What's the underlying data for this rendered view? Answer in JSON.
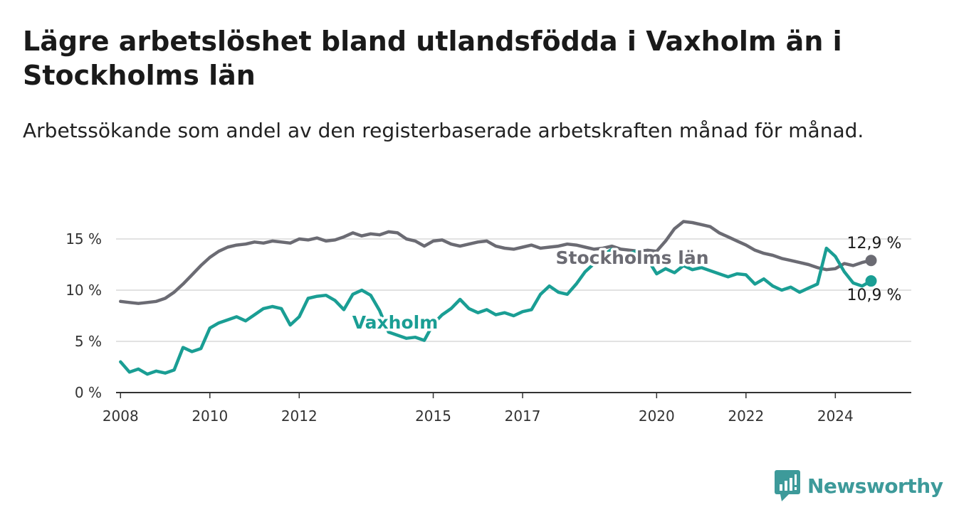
{
  "header": {
    "title": "Lägre arbetslöshet bland utlandsfödda i Vaxholm än i Stockholms län",
    "subtitle": "Arbetssökande som andel av den registerbaserade arbetskraften månad för månad."
  },
  "brand": {
    "name": "Newsworthy",
    "icon": "newsworthy-logo-icon",
    "color": "#3d9a9a"
  },
  "chart_data": {
    "type": "line",
    "title": "Lägre arbetslöshet bland utlandsfödda i Vaxholm än i Stockholms län",
    "subtitle": "Arbetssökande som andel av den registerbaserade arbetskraften månad för månad.",
    "xlabel": "",
    "ylabel": "",
    "xlim": [
      2007.9,
      2025.7
    ],
    "ylim": [
      0,
      15
    ],
    "x_ticks": [
      {
        "value": 2008,
        "label": "2008"
      },
      {
        "value": 2010,
        "label": "2010"
      },
      {
        "value": 2012,
        "label": "2012"
      },
      {
        "value": 2015,
        "label": "2015"
      },
      {
        "value": 2017,
        "label": "2017"
      },
      {
        "value": 2020,
        "label": "2020"
      },
      {
        "value": 2022,
        "label": "2022"
      },
      {
        "value": 2024,
        "label": "2024"
      }
    ],
    "y_ticks": [
      {
        "value": 0,
        "label": "0 %"
      },
      {
        "value": 5,
        "label": "5 %"
      },
      {
        "value": 10,
        "label": "10 %"
      },
      {
        "value": 15,
        "label": "15 %"
      }
    ],
    "grid": "horizontal",
    "legend": "inline labels",
    "series": [
      {
        "name": "Stockholms län",
        "color": "#6b6b73",
        "end_label": "12,9 %",
        "points": [
          [
            2008.0,
            8.9
          ],
          [
            2008.2,
            8.8
          ],
          [
            2008.4,
            8.7
          ],
          [
            2008.6,
            8.8
          ],
          [
            2008.8,
            8.9
          ],
          [
            2009.0,
            9.2
          ],
          [
            2009.2,
            9.8
          ],
          [
            2009.4,
            10.6
          ],
          [
            2009.6,
            11.5
          ],
          [
            2009.8,
            12.4
          ],
          [
            2010.0,
            13.2
          ],
          [
            2010.2,
            13.8
          ],
          [
            2010.4,
            14.2
          ],
          [
            2010.6,
            14.4
          ],
          [
            2010.8,
            14.5
          ],
          [
            2011.0,
            14.7
          ],
          [
            2011.2,
            14.6
          ],
          [
            2011.4,
            14.8
          ],
          [
            2011.6,
            14.7
          ],
          [
            2011.8,
            14.6
          ],
          [
            2012.0,
            15.0
          ],
          [
            2012.2,
            14.9
          ],
          [
            2012.4,
            15.1
          ],
          [
            2012.6,
            14.8
          ],
          [
            2012.8,
            14.9
          ],
          [
            2013.0,
            15.2
          ],
          [
            2013.2,
            15.6
          ],
          [
            2013.4,
            15.3
          ],
          [
            2013.6,
            15.5
          ],
          [
            2013.8,
            15.4
          ],
          [
            2014.0,
            15.7
          ],
          [
            2014.2,
            15.6
          ],
          [
            2014.4,
            15.0
          ],
          [
            2014.6,
            14.8
          ],
          [
            2014.8,
            14.3
          ],
          [
            2015.0,
            14.8
          ],
          [
            2015.2,
            14.9
          ],
          [
            2015.4,
            14.5
          ],
          [
            2015.6,
            14.3
          ],
          [
            2015.8,
            14.5
          ],
          [
            2016.0,
            14.7
          ],
          [
            2016.2,
            14.8
          ],
          [
            2016.4,
            14.3
          ],
          [
            2016.6,
            14.1
          ],
          [
            2016.8,
            14.0
          ],
          [
            2017.0,
            14.2
          ],
          [
            2017.2,
            14.4
          ],
          [
            2017.4,
            14.1
          ],
          [
            2017.6,
            14.2
          ],
          [
            2017.8,
            14.3
          ],
          [
            2018.0,
            14.5
          ],
          [
            2018.2,
            14.4
          ],
          [
            2018.4,
            14.2
          ],
          [
            2018.6,
            14.0
          ],
          [
            2018.8,
            14.1
          ],
          [
            2019.0,
            14.3
          ],
          [
            2019.2,
            14.0
          ],
          [
            2019.4,
            13.9
          ],
          [
            2019.6,
            13.8
          ],
          [
            2019.8,
            13.9
          ],
          [
            2020.0,
            13.8
          ],
          [
            2020.2,
            14.8
          ],
          [
            2020.4,
            16.0
          ],
          [
            2020.6,
            16.7
          ],
          [
            2020.8,
            16.6
          ],
          [
            2021.0,
            16.4
          ],
          [
            2021.2,
            16.2
          ],
          [
            2021.4,
            15.6
          ],
          [
            2021.6,
            15.2
          ],
          [
            2021.8,
            14.8
          ],
          [
            2022.0,
            14.4
          ],
          [
            2022.2,
            13.9
          ],
          [
            2022.4,
            13.6
          ],
          [
            2022.6,
            13.4
          ],
          [
            2022.8,
            13.1
          ],
          [
            2023.0,
            12.9
          ],
          [
            2023.2,
            12.7
          ],
          [
            2023.4,
            12.5
          ],
          [
            2023.6,
            12.2
          ],
          [
            2023.8,
            12.0
          ],
          [
            2024.0,
            12.1
          ],
          [
            2024.2,
            12.6
          ],
          [
            2024.4,
            12.4
          ],
          [
            2024.6,
            12.7
          ],
          [
            2024.8,
            12.9
          ]
        ]
      },
      {
        "name": "Vaxholm",
        "color": "#1a9e94",
        "end_label": "10,9 %",
        "points": [
          [
            2008.0,
            3.0
          ],
          [
            2008.2,
            2.0
          ],
          [
            2008.4,
            2.3
          ],
          [
            2008.6,
            1.8
          ],
          [
            2008.8,
            2.1
          ],
          [
            2009.0,
            1.9
          ],
          [
            2009.2,
            2.2
          ],
          [
            2009.4,
            4.4
          ],
          [
            2009.6,
            4.0
          ],
          [
            2009.8,
            4.3
          ],
          [
            2010.0,
            6.3
          ],
          [
            2010.2,
            6.8
          ],
          [
            2010.4,
            7.1
          ],
          [
            2010.6,
            7.4
          ],
          [
            2010.8,
            7.0
          ],
          [
            2011.0,
            7.6
          ],
          [
            2011.2,
            8.2
          ],
          [
            2011.4,
            8.4
          ],
          [
            2011.6,
            8.2
          ],
          [
            2011.8,
            6.6
          ],
          [
            2012.0,
            7.4
          ],
          [
            2012.2,
            9.2
          ],
          [
            2012.4,
            9.4
          ],
          [
            2012.6,
            9.5
          ],
          [
            2012.8,
            9.0
          ],
          [
            2013.0,
            8.1
          ],
          [
            2013.2,
            9.6
          ],
          [
            2013.4,
            10.0
          ],
          [
            2013.6,
            9.5
          ],
          [
            2013.8,
            8.0
          ],
          [
            2014.0,
            5.9
          ],
          [
            2014.2,
            5.6
          ],
          [
            2014.4,
            5.3
          ],
          [
            2014.6,
            5.4
          ],
          [
            2014.8,
            5.1
          ],
          [
            2015.0,
            6.7
          ],
          [
            2015.2,
            7.6
          ],
          [
            2015.4,
            8.2
          ],
          [
            2015.6,
            9.1
          ],
          [
            2015.8,
            8.2
          ],
          [
            2016.0,
            7.8
          ],
          [
            2016.2,
            8.1
          ],
          [
            2016.4,
            7.6
          ],
          [
            2016.6,
            7.8
          ],
          [
            2016.8,
            7.5
          ],
          [
            2017.0,
            7.9
          ],
          [
            2017.2,
            8.1
          ],
          [
            2017.4,
            9.6
          ],
          [
            2017.6,
            10.4
          ],
          [
            2017.8,
            9.8
          ],
          [
            2018.0,
            9.6
          ],
          [
            2018.2,
            10.6
          ],
          [
            2018.4,
            11.8
          ],
          [
            2018.6,
            12.6
          ],
          [
            2018.8,
            13.4
          ],
          [
            2019.0,
            14.0
          ],
          [
            2019.2,
            13.1
          ],
          [
            2019.4,
            13.6
          ],
          [
            2019.6,
            13.9
          ],
          [
            2019.8,
            13.0
          ],
          [
            2020.0,
            11.6
          ],
          [
            2020.2,
            12.1
          ],
          [
            2020.4,
            11.7
          ],
          [
            2020.6,
            12.4
          ],
          [
            2020.8,
            12.0
          ],
          [
            2021.0,
            12.2
          ],
          [
            2021.2,
            11.9
          ],
          [
            2021.4,
            11.6
          ],
          [
            2021.6,
            11.3
          ],
          [
            2021.8,
            11.6
          ],
          [
            2022.0,
            11.5
          ],
          [
            2022.2,
            10.6
          ],
          [
            2022.4,
            11.1
          ],
          [
            2022.6,
            10.4
          ],
          [
            2022.8,
            10.0
          ],
          [
            2023.0,
            10.3
          ],
          [
            2023.2,
            9.8
          ],
          [
            2023.4,
            10.2
          ],
          [
            2023.6,
            10.6
          ],
          [
            2023.8,
            14.1
          ],
          [
            2024.0,
            13.3
          ],
          [
            2024.2,
            11.8
          ],
          [
            2024.4,
            10.7
          ],
          [
            2024.6,
            10.4
          ],
          [
            2024.8,
            10.9
          ]
        ]
      }
    ]
  }
}
